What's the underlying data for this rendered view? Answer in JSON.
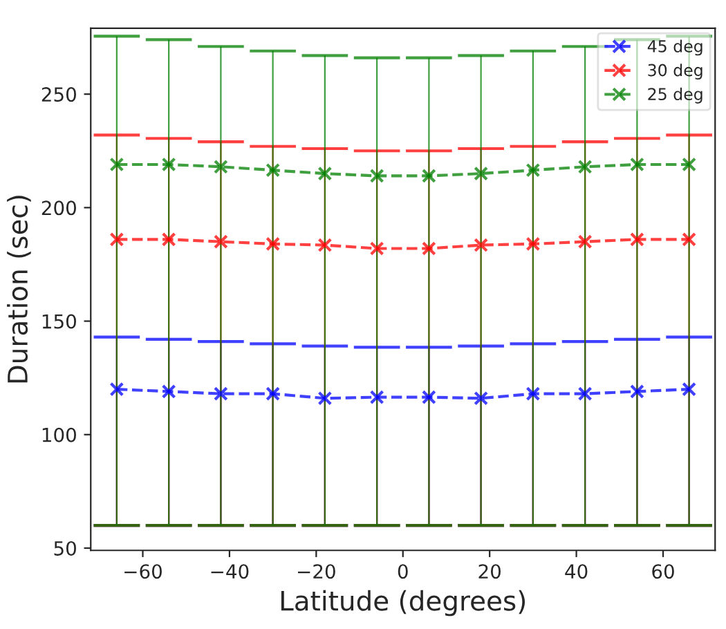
{
  "chart_data": {
    "type": "line",
    "xlabel": "Latitude (degrees)",
    "ylabel": "Duration (sec)",
    "x": [
      -66,
      -54,
      -42,
      -30,
      -18,
      -6,
      6,
      18,
      30,
      42,
      54,
      66
    ],
    "xlim": [
      -72,
      72
    ],
    "xticks": [
      {
        "value": -60,
        "label": "−60"
      },
      {
        "value": -40,
        "label": "−40"
      },
      {
        "value": -20,
        "label": "−20"
      },
      0,
      20,
      40,
      60
    ],
    "ylim": [
      49,
      279
    ],
    "yticks": [
      50,
      100,
      150,
      200,
      250
    ],
    "grid": false,
    "legend": "top right",
    "marker": "cross",
    "line_style": "dashed",
    "series": [
      {
        "name": "45 deg",
        "color": "#0000ff",
        "values": [
          120,
          119,
          118,
          118,
          116,
          116.5,
          116.5,
          116,
          118,
          118,
          119,
          120
        ],
        "errors": [
          [
            60,
            143
          ],
          [
            60,
            142
          ],
          [
            60,
            141
          ],
          [
            60,
            140
          ],
          [
            60,
            139
          ],
          [
            60,
            138.5
          ],
          [
            60,
            138.5
          ],
          [
            60,
            139
          ],
          [
            60,
            140
          ],
          [
            60,
            141
          ],
          [
            60,
            142
          ],
          [
            60,
            143
          ]
        ]
      },
      {
        "name": "30 deg",
        "color": "#ff0000",
        "values": [
          186,
          186,
          185,
          184,
          183.5,
          182,
          182,
          183.5,
          184,
          185,
          186,
          186
        ],
        "errors": [
          [
            60,
            232
          ],
          [
            60,
            230.5
          ],
          [
            60,
            229
          ],
          [
            60,
            227
          ],
          [
            60,
            226
          ],
          [
            60,
            225
          ],
          [
            60,
            225
          ],
          [
            60,
            226
          ],
          [
            60,
            227
          ],
          [
            60,
            229
          ],
          [
            60,
            230.5
          ],
          [
            60,
            232
          ]
        ]
      },
      {
        "name": "25 deg",
        "color": "#008000",
        "values": [
          219,
          219,
          218,
          216.5,
          215,
          214,
          214,
          215,
          216.5,
          218,
          219,
          219
        ],
        "errors": [
          [
            60,
            275.5
          ],
          [
            60,
            274
          ],
          [
            60,
            271
          ],
          [
            60,
            269
          ],
          [
            60,
            267
          ],
          [
            60,
            266
          ],
          [
            60,
            266
          ],
          [
            60,
            267
          ],
          [
            60,
            269
          ],
          [
            60,
            271
          ],
          [
            60,
            274
          ],
          [
            60,
            275.5
          ]
        ]
      }
    ]
  }
}
